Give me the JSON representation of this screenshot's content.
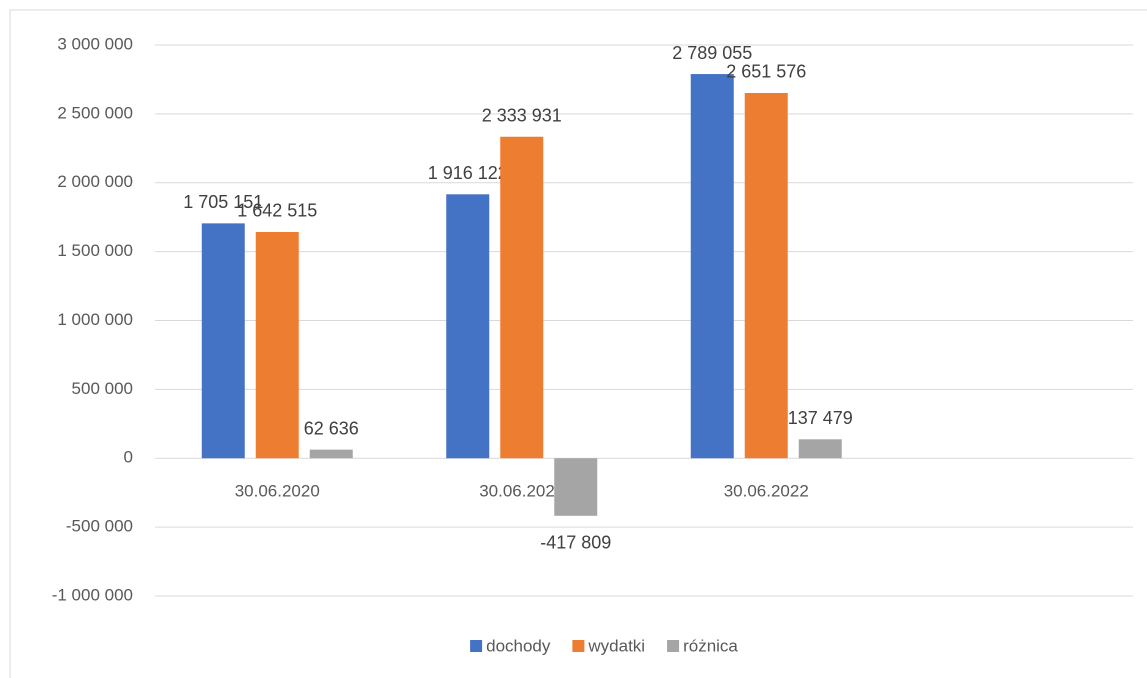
{
  "chart_data": {
    "type": "bar",
    "categories": [
      "30.06.2020",
      "30.06.2021",
      "30.06.2022",
      null
    ],
    "series": [
      {
        "name": "dochody",
        "color": "#4472c4",
        "values": [
          1705151,
          1916122,
          2789055,
          null
        ],
        "value_labels": [
          "1 705 151",
          "1 916 122",
          "2 789 055",
          null
        ]
      },
      {
        "name": "wydatki",
        "color": "#ed7d31",
        "values": [
          1642515,
          2333931,
          2651576,
          null
        ],
        "value_labels": [
          "1 642 515",
          "2 333 931",
          "2 651 576",
          null
        ]
      },
      {
        "name": "różnica",
        "color": "#a5a5a5",
        "values": [
          62636,
          -417809,
          137479,
          null
        ],
        "value_labels": [
          "62 636",
          "-417 809",
          "137 479",
          null
        ]
      }
    ],
    "ylim": [
      -1000000,
      3000000
    ],
    "yticks": [
      {
        "value": -1000000,
        "label": "-1 000 000"
      },
      {
        "value": -500000,
        "label": "-500 000"
      },
      0,
      {
        "value": 500000,
        "label": "500 000"
      },
      {
        "value": 1000000,
        "label": "1 000 000"
      },
      {
        "value": 1500000,
        "label": "1 500 000"
      },
      {
        "value": 2000000,
        "label": "2 000 000"
      },
      {
        "value": 2500000,
        "label": "2 500 000"
      },
      {
        "value": 3000000,
        "label": "3 000 000"
      }
    ],
    "grid": true,
    "legend": "bottom"
  }
}
